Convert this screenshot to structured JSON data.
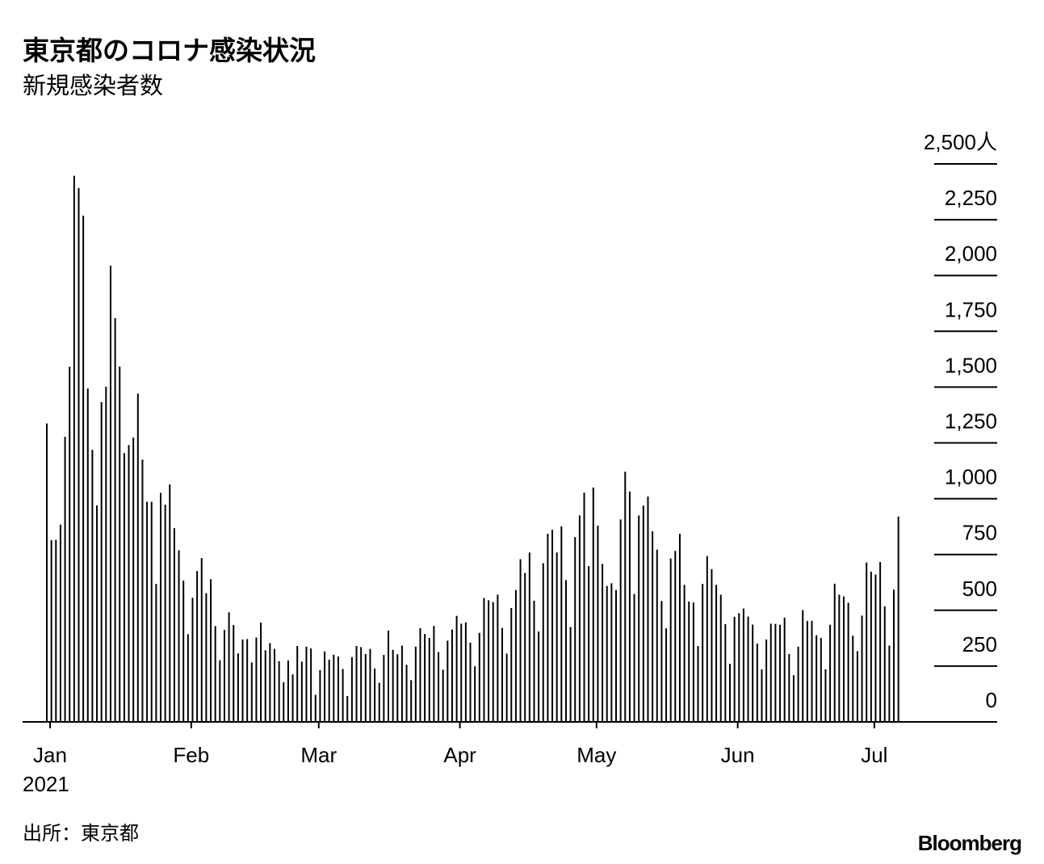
{
  "chart_data": {
    "type": "bar",
    "title": "東京都のコロナ感染状況",
    "subtitle": "新規感染者数",
    "x_sublabel": "2021",
    "source": "出所：東京都",
    "brand": "Bloomberg",
    "color": "#000000",
    "categories": [
      "Jan",
      null,
      null,
      null,
      null,
      null,
      null,
      null,
      null,
      null,
      null,
      null,
      null,
      null,
      null,
      null,
      null,
      null,
      null,
      null,
      null,
      null,
      null,
      null,
      null,
      null,
      null,
      null,
      null,
      null,
      null,
      "Feb",
      null,
      null,
      null,
      null,
      null,
      null,
      null,
      null,
      null,
      null,
      null,
      null,
      null,
      null,
      null,
      null,
      null,
      null,
      null,
      null,
      null,
      null,
      null,
      null,
      null,
      null,
      null,
      "Mar",
      null,
      null,
      null,
      null,
      null,
      null,
      null,
      null,
      null,
      null,
      null,
      null,
      null,
      null,
      null,
      null,
      null,
      null,
      null,
      null,
      null,
      null,
      null,
      null,
      null,
      null,
      null,
      null,
      null,
      null,
      "Apr",
      null,
      null,
      null,
      null,
      null,
      null,
      null,
      null,
      null,
      null,
      null,
      null,
      null,
      null,
      null,
      null,
      null,
      null,
      null,
      null,
      null,
      null,
      null,
      null,
      null,
      null,
      null,
      null,
      null,
      "May",
      null,
      null,
      null,
      null,
      null,
      null,
      null,
      null,
      null,
      null,
      null,
      null,
      null,
      null,
      null,
      null,
      null,
      null,
      null,
      null,
      null,
      null,
      null,
      null,
      null,
      null,
      null,
      null,
      null,
      null,
      "Jun",
      null,
      null,
      null,
      null,
      null,
      null,
      null,
      null,
      null,
      null,
      null,
      null,
      null,
      null,
      null,
      null,
      null,
      null,
      null,
      null,
      null,
      null,
      null,
      null,
      null,
      null,
      null,
      null,
      null,
      "Jul",
      null,
      null,
      null,
      null,
      null,
      null
    ],
    "values": [
      1337,
      814,
      816,
      884,
      1278,
      1591,
      2447,
      2392,
      2268,
      1494,
      1219,
      970,
      1433,
      1502,
      2044,
      1809,
      1592,
      1204,
      1240,
      1274,
      1471,
      1175,
      986,
      986,
      618,
      1026,
      973,
      1064,
      868,
      769,
      633,
      393,
      556,
      676,
      734,
      577,
      639,
      429,
      276,
      412,
      491,
      434,
      307,
      369,
      371,
      266,
      378,
      445,
      321,
      353,
      327,
      272,
      178,
      275,
      213,
      340,
      270,
      337,
      329,
      121,
      232,
      316,
      279,
      301,
      293,
      237,
      116,
      290,
      340,
      335,
      304,
      327,
      239,
      175,
      300,
      409,
      323,
      303,
      342,
      256,
      187,
      337,
      420,
      394,
      376,
      430,
      313,
      234,
      364,
      414,
      475,
      440,
      446,
      355,
      249,
      399,
      555,
      545,
      537,
      570,
      421,
      306,
      510,
      591,
      729,
      667,
      759,
      543,
      405,
      711,
      843,
      861,
      759,
      876,
      635,
      425,
      828,
      925,
      1027,
      698,
      1050,
      879,
      708,
      609,
      621,
      591,
      907,
      1121,
      1032,
      573,
      925,
      969,
      1010,
      854,
      772,
      542,
      419,
      732,
      766,
      843,
      614,
      539,
      535,
      340,
      618,
      743,
      684,
      614,
      570,
      438,
      260,
      471,
      487,
      508,
      472,
      436,
      351,
      235,
      369,
      440,
      439,
      435,
      467,
      304,
      209,
      337,
      501,
      452,
      453,
      388,
      376,
      236,
      435,
      619,
      570,
      562,
      534,
      386,
      317,
      476,
      714,
      673,
      660,
      716,
      518,
      342,
      593,
      920
    ],
    "ylim": [
      0,
      2500
    ],
    "yticks": [
      0,
      250,
      500,
      750,
      {
        "value": 1000,
        "label": "1,000"
      },
      {
        "value": 1250,
        "label": "1,250"
      },
      {
        "value": 1500,
        "label": "1,500"
      },
      {
        "value": 1750,
        "label": "1,750"
      },
      {
        "value": 2000,
        "label": "2,000"
      },
      {
        "value": 2250,
        "label": "2,250"
      },
      {
        "value": 2500,
        "label": "2,500人"
      }
    ]
  }
}
